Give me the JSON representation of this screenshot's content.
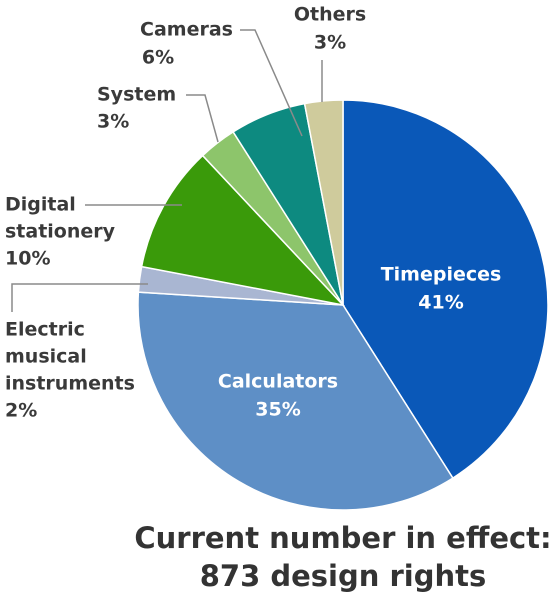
{
  "chart_data": {
    "type": "pie",
    "title": [
      "Current number in effect:",
      "873 design rights"
    ],
    "categories": [
      [
        "Timepieces"
      ],
      [
        "Calculators"
      ],
      [
        "Electric",
        "musical",
        "instruments"
      ],
      [
        "Digital",
        "stationery"
      ],
      [
        "System"
      ],
      [
        "Cameras"
      ],
      [
        "Others"
      ]
    ],
    "values": [
      41,
      35,
      2,
      10,
      3,
      6,
      3
    ],
    "value_labels": [
      "41%",
      "35%",
      "2%",
      "10%",
      "3%",
      "6%",
      "3%"
    ],
    "colors": [
      "#0a58b8",
      "#5e8fc6",
      "#a9b6d2",
      "#3a9a0a",
      "#8dc56b",
      "#0d8a80",
      "#cfcb9c"
    ]
  }
}
